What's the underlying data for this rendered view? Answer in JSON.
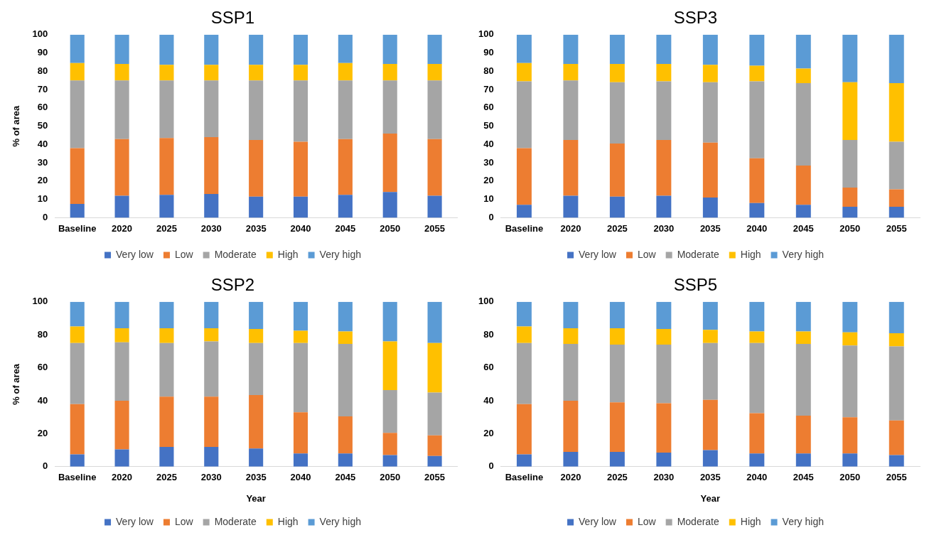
{
  "chart_data": [
    {
      "type": "bar",
      "stacked": true,
      "title": "SSP1",
      "ylabel": "% of area",
      "categories": [
        "Baseline",
        "2020",
        "2025",
        "2030",
        "2035",
        "2040",
        "2045",
        "2050",
        "2055"
      ],
      "ylim": [
        0,
        100
      ],
      "yticks": [
        0,
        10,
        20,
        30,
        40,
        50,
        60,
        70,
        80,
        90,
        100
      ],
      "grid": false,
      "legend": "bottom",
      "series": [
        {
          "name": "Very low",
          "color": "#4472c4",
          "values": [
            7.5,
            12,
            12.5,
            13,
            11.5,
            11.5,
            12.5,
            14,
            12
          ]
        },
        {
          "name": "Low",
          "color": "#ed7d31",
          "values": [
            30.5,
            31,
            31,
            31,
            31,
            30,
            30.5,
            32,
            31
          ]
        },
        {
          "name": "Moderate",
          "color": "#a5a5a5",
          "values": [
            37,
            32,
            31.5,
            31,
            32.5,
            33.5,
            32,
            29,
            32
          ]
        },
        {
          "name": "High",
          "color": "#ffc000",
          "values": [
            9.5,
            9,
            8.5,
            8.5,
            8.5,
            8.5,
            9.5,
            9,
            9
          ]
        },
        {
          "name": "Very high",
          "color": "#5b9bd5",
          "values": [
            15.5,
            16,
            16.5,
            16.5,
            16.5,
            16.5,
            15.5,
            16,
            16
          ]
        }
      ]
    },
    {
      "type": "bar",
      "stacked": true,
      "title": "SSP3",
      "categories": [
        "Baseline",
        "2020",
        "2025",
        "2030",
        "2035",
        "2040",
        "2045",
        "2050",
        "2055"
      ],
      "ylim": [
        0,
        100
      ],
      "yticks": [
        0,
        10,
        20,
        30,
        40,
        50,
        60,
        70,
        80,
        90,
        100
      ],
      "grid": false,
      "legend": "bottom",
      "series": [
        {
          "name": "Very low",
          "color": "#4472c4",
          "values": [
            7,
            12,
            11.5,
            12,
            11,
            8,
            7,
            6,
            6
          ]
        },
        {
          "name": "Low",
          "color": "#ed7d31",
          "values": [
            31,
            30.5,
            29,
            30.5,
            30,
            24.5,
            21.5,
            10.5,
            9.5
          ]
        },
        {
          "name": "Moderate",
          "color": "#a5a5a5",
          "values": [
            36.5,
            32.5,
            33.5,
            32,
            33,
            42,
            45,
            26,
            26
          ]
        },
        {
          "name": "High",
          "color": "#ffc000",
          "values": [
            10,
            9,
            10,
            9.5,
            9.5,
            8.5,
            8,
            31.5,
            32
          ]
        },
        {
          "name": "Very high",
          "color": "#5b9bd5",
          "values": [
            15.5,
            16,
            16,
            16,
            16.5,
            17,
            18.5,
            26,
            26.5
          ]
        }
      ]
    },
    {
      "type": "bar",
      "stacked": true,
      "title": "SSP2",
      "xlabel": "Year",
      "ylabel": "% of area",
      "categories": [
        "Baseline",
        "2020",
        "2025",
        "2030",
        "2035",
        "2040",
        "2045",
        "2050",
        "2055"
      ],
      "ylim": [
        0,
        100
      ],
      "yticks": [
        0,
        20,
        40,
        60,
        80,
        100
      ],
      "grid": false,
      "legend": "bottom",
      "series": [
        {
          "name": "Very low",
          "color": "#4472c4",
          "values": [
            7.5,
            10.5,
            12,
            12,
            11,
            8,
            8,
            7,
            6.5
          ]
        },
        {
          "name": "Low",
          "color": "#ed7d31",
          "values": [
            30.5,
            29.5,
            30.5,
            30.5,
            32.5,
            25,
            22.5,
            13.5,
            12.5
          ]
        },
        {
          "name": "Moderate",
          "color": "#a5a5a5",
          "values": [
            37,
            35.5,
            32.5,
            33.5,
            31.5,
            42,
            44,
            26,
            26
          ]
        },
        {
          "name": "High",
          "color": "#ffc000",
          "values": [
            10,
            8.5,
            9,
            8,
            8.5,
            7.5,
            7.5,
            29.5,
            30
          ]
        },
        {
          "name": "Very high",
          "color": "#5b9bd5",
          "values": [
            15,
            16,
            16,
            16,
            16.5,
            17.5,
            18,
            24,
            25
          ]
        }
      ]
    },
    {
      "type": "bar",
      "stacked": true,
      "title": "SSP5",
      "xlabel": "Year",
      "categories": [
        "Baseline",
        "2020",
        "2025",
        "2030",
        "2035",
        "2040",
        "2045",
        "2050",
        "2055"
      ],
      "ylim": [
        0,
        100
      ],
      "yticks": [
        0,
        20,
        40,
        60,
        80,
        100
      ],
      "grid": false,
      "legend": "bottom",
      "series": [
        {
          "name": "Very low",
          "color": "#4472c4",
          "values": [
            7.5,
            9,
            9,
            8.5,
            10,
            8,
            8,
            8,
            7
          ]
        },
        {
          "name": "Low",
          "color": "#ed7d31",
          "values": [
            30.5,
            31,
            30,
            30,
            30.5,
            24.5,
            23,
            22,
            21
          ]
        },
        {
          "name": "Moderate",
          "color": "#a5a5a5",
          "values": [
            37,
            34.5,
            35,
            35.5,
            34.5,
            42.5,
            43.5,
            43.5,
            45
          ]
        },
        {
          "name": "High",
          "color": "#ffc000",
          "values": [
            10,
            9.5,
            10,
            9.5,
            8,
            7,
            7.5,
            8,
            8
          ]
        },
        {
          "name": "Very high",
          "color": "#5b9bd5",
          "values": [
            15,
            16,
            16,
            16.5,
            17,
            18,
            18,
            18.5,
            19
          ]
        }
      ]
    }
  ]
}
